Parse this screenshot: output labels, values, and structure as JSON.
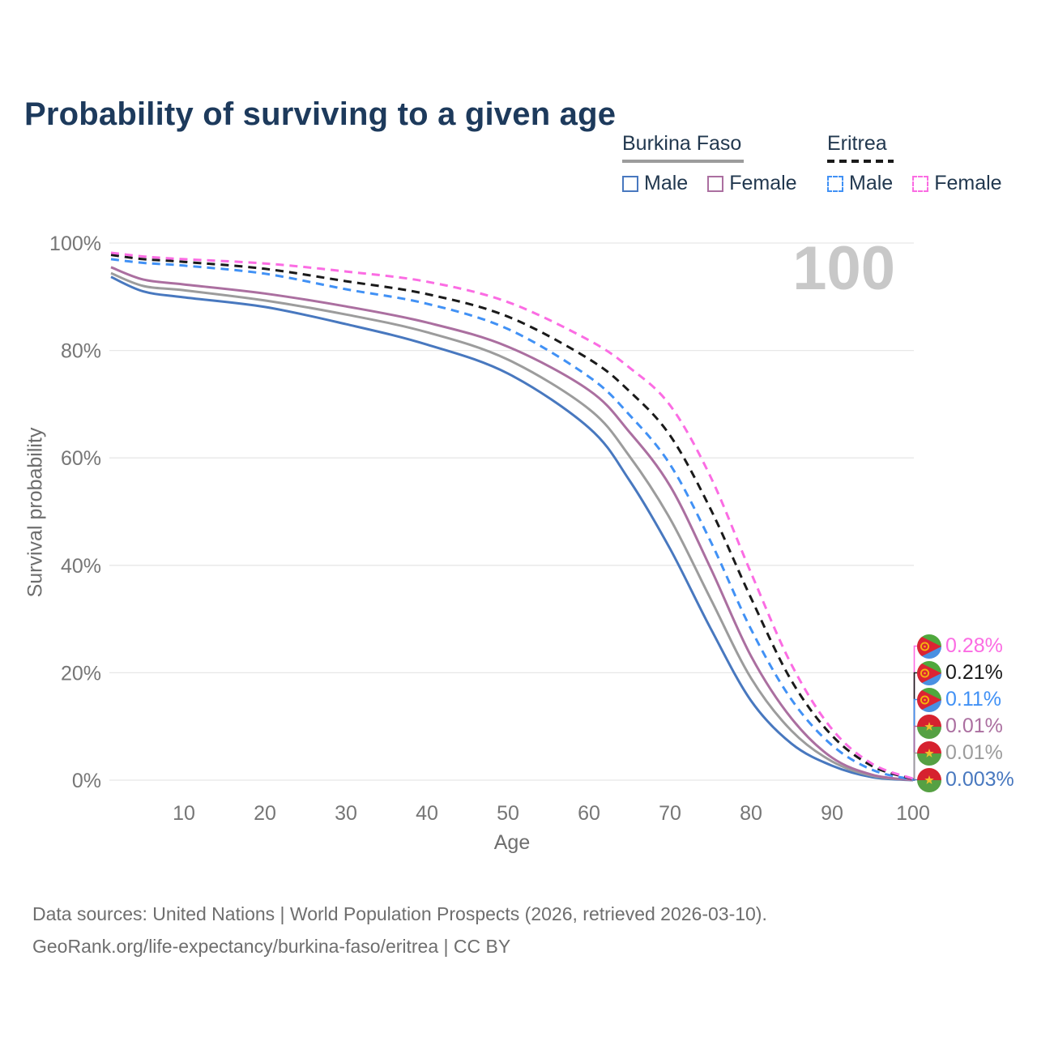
{
  "title": "Probability of surviving to a given age",
  "age_counter": "100",
  "legend": {
    "groups": [
      {
        "name": "Burkina Faso",
        "line_style": "solid",
        "underline_color": "#9c9c9c",
        "items": [
          {
            "label": "Male",
            "color": "#4878bf"
          },
          {
            "label": "Female",
            "color": "#ab6fa0"
          }
        ]
      },
      {
        "name": "Eritrea",
        "line_style": "dashed",
        "underline_color": "#1a1a1a",
        "items": [
          {
            "label": "Male",
            "color": "#4191f5"
          },
          {
            "label": "Female",
            "color": "#fb6ce3"
          }
        ]
      }
    ]
  },
  "chart_data": {
    "type": "line",
    "title": "Probability of surviving to a given age",
    "xlabel": "Age",
    "ylabel": "Survival probability",
    "xlim": [
      1,
      100
    ],
    "ylim": [
      0,
      100
    ],
    "grid": "horizontal-only",
    "x_ticks": [
      10,
      20,
      30,
      40,
      50,
      60,
      70,
      80,
      90,
      100
    ],
    "y_ticks": [
      {
        "value": 0,
        "label": "0%"
      },
      {
        "value": 20,
        "label": "20%"
      },
      {
        "value": 40,
        "label": "40%"
      },
      {
        "value": 60,
        "label": "60%"
      },
      {
        "value": 80,
        "label": "80%"
      },
      {
        "value": 100,
        "label": "100%"
      }
    ],
    "ages": [
      1,
      5,
      10,
      20,
      30,
      40,
      50,
      60,
      65,
      70,
      75,
      80,
      85,
      90,
      95,
      100
    ],
    "series": [
      {
        "name": "Eritrea Female",
        "country": "Eritrea",
        "sex": "Female",
        "color": "#fb6ce3",
        "dash": true,
        "end_label": "0.28%",
        "values": [
          98.2,
          97.5,
          97.0,
          96.2,
          94.7,
          92.8,
          89.0,
          81.9,
          76.8,
          69.8,
          56.5,
          38.6,
          21.5,
          9.5,
          3.0,
          0.28
        ]
      },
      {
        "name": "Eritrea Both sexes",
        "country": "Eritrea",
        "sex": "Both",
        "color": "#1a1a1a",
        "dash": true,
        "end_label": "0.21%",
        "values": [
          97.8,
          97.0,
          96.5,
          95.2,
          92.9,
          90.5,
          86.3,
          78.4,
          72.4,
          64.2,
          50.5,
          33.9,
          18.5,
          8.3,
          2.6,
          0.21
        ]
      },
      {
        "name": "Eritrea Male",
        "country": "Eritrea",
        "sex": "Male",
        "color": "#4191f5",
        "dash": true,
        "end_label": "0.11%",
        "values": [
          97.0,
          96.3,
          95.8,
          94.3,
          91.4,
          88.7,
          84.0,
          75.1,
          68.0,
          58.8,
          44.5,
          28.1,
          15.0,
          6.5,
          1.9,
          0.11
        ]
      },
      {
        "name": "Burkina Faso Female",
        "country": "Burkina Faso",
        "sex": "Female",
        "color": "#ab6fa0",
        "dash": false,
        "end_label": "0.01%",
        "values": [
          95.5,
          93.2,
          92.3,
          90.6,
          88.2,
          85.2,
          80.7,
          72.6,
          64.8,
          54.8,
          39.5,
          23.1,
          11.5,
          4.2,
          1.0,
          0.01
        ]
      },
      {
        "name": "Burkina Faso Both sexes",
        "country": "Burkina Faso",
        "sex": "Both",
        "color": "#9c9c9c",
        "dash": false,
        "end_label": "0.01%",
        "values": [
          94.4,
          92.0,
          91.2,
          89.3,
          86.7,
          83.4,
          78.3,
          69.1,
          60.3,
          48.7,
          33.8,
          19.0,
          9.2,
          3.5,
          0.8,
          0.01
        ]
      },
      {
        "name": "Burkina Faso Male",
        "country": "Burkina Faso",
        "sex": "Male",
        "color": "#4878bf",
        "dash": false,
        "end_label": "0.003%",
        "values": [
          93.7,
          91.0,
          89.9,
          88.1,
          84.9,
          81.1,
          75.7,
          65.6,
          55.8,
          43.1,
          28.3,
          14.8,
          6.8,
          2.7,
          0.55,
          0.003
        ]
      }
    ]
  },
  "flags": {
    "eritrea": {
      "green": "#4fa83d",
      "blue": "#4a90e2",
      "red": "#dc2433",
      "yellow": "#f5b40f"
    },
    "burkina_faso": {
      "red": "#d6222f",
      "green": "#55a043",
      "yellow": "#f0c02c"
    }
  },
  "colors": {
    "title": "#1d3a5c",
    "grid": "#e7e7e7",
    "tick_text": "#767676",
    "axis_title": "#6e6e6e",
    "age_counter": "#c8c8c8"
  },
  "footer": {
    "line1": "Data sources: United Nations | World Population Prospects (2026, retrieved 2026-03-10).",
    "line2": "GeoRank.org/life-expectancy/burkina-faso/eritrea | CC BY"
  }
}
